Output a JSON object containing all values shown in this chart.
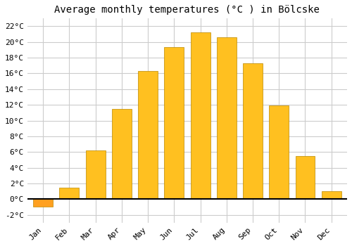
{
  "title": "Average monthly temperatures (°C ) in Bölcske",
  "months": [
    "Jan",
    "Feb",
    "Mar",
    "Apr",
    "May",
    "Jun",
    "Jul",
    "Aug",
    "Sep",
    "Oct",
    "Nov",
    "Dec"
  ],
  "temperatures": [
    -1.0,
    1.5,
    6.2,
    11.5,
    16.3,
    19.4,
    21.2,
    20.6,
    17.3,
    11.9,
    5.5,
    1.0
  ],
  "bar_color_positive": "#FFC020",
  "bar_color_negative": "#FFA020",
  "bar_edge_color": "#BB8800",
  "ylim": [
    -3,
    23
  ],
  "yticks": [
    -2,
    0,
    2,
    4,
    6,
    8,
    10,
    12,
    14,
    16,
    18,
    20,
    22
  ],
  "grid_color": "#cccccc",
  "bg_color": "#ffffff",
  "title_fontsize": 10,
  "tick_fontsize": 8,
  "font_family": "monospace"
}
